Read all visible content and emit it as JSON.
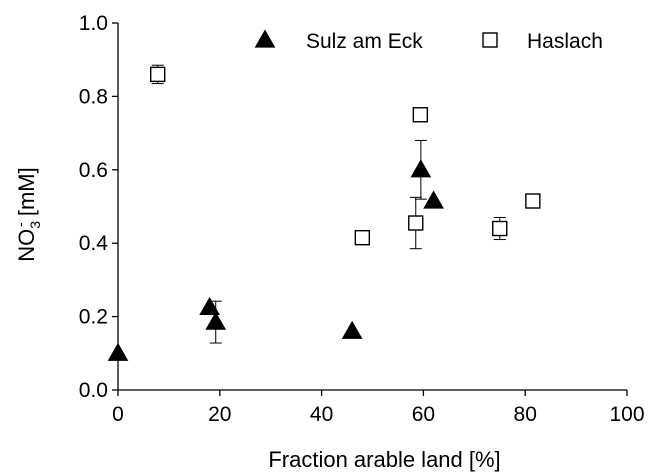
{
  "chart_data": {
    "type": "scatter",
    "title": "",
    "xlabel": "Fraction arable land [%]",
    "ylabel": {
      "main": "NO",
      "sub": "3",
      "sup": "-",
      "rest": " [mM]"
    },
    "xlim": [
      0,
      100
    ],
    "ylim": [
      0.0,
      1.0
    ],
    "xticks": [
      0,
      20,
      40,
      60,
      80,
      100
    ],
    "xtick_labels": [
      "0",
      "20",
      "40",
      "60",
      "80",
      "100"
    ],
    "yticks": [
      0.0,
      0.2,
      0.4,
      0.6,
      0.8,
      1.0
    ],
    "ytick_labels": [
      "0.0",
      "0.2",
      "0.4",
      "0.6",
      "0.8",
      "1.0"
    ],
    "grid": false,
    "legend_position": "top-right",
    "series": [
      {
        "name": "Sulz am Eck",
        "marker": "filled-triangle",
        "color": "#000000",
        "points": [
          {
            "x": 0,
            "y": 0.1,
            "err": 0.0
          },
          {
            "x": 18,
            "y": 0.225,
            "err": 0.0
          },
          {
            "x": 19.2,
            "y": 0.185,
            "err": 0.057
          },
          {
            "x": 46,
            "y": 0.16,
            "err": 0.0
          },
          {
            "x": 59.5,
            "y": 0.6,
            "err": 0.08
          },
          {
            "x": 62,
            "y": 0.515,
            "err": 0.0
          }
        ]
      },
      {
        "name": "Haslach",
        "marker": "open-square",
        "color": "#000000",
        "points": [
          {
            "x": 7.8,
            "y": 0.86,
            "err": 0.025
          },
          {
            "x": 48,
            "y": 0.415,
            "err": 0.0
          },
          {
            "x": 58.5,
            "y": 0.455,
            "err": 0.07
          },
          {
            "x": 59.4,
            "y": 0.75,
            "err": 0.0
          },
          {
            "x": 75,
            "y": 0.44,
            "err": 0.03
          },
          {
            "x": 81.5,
            "y": 0.515,
            "err": 0.0
          }
        ]
      }
    ]
  }
}
